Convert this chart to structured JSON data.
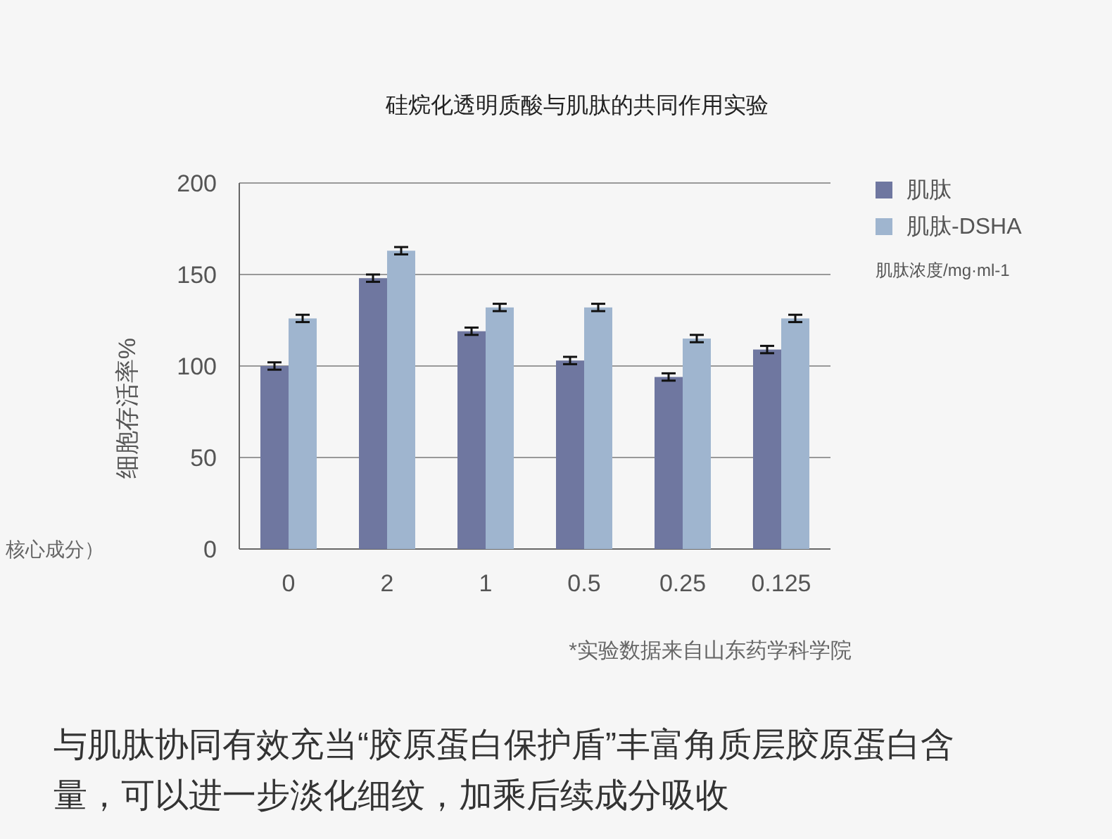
{
  "chart_data": {
    "type": "bar",
    "title": "硅烷化透明质酸与肌肽的共同作用实验",
    "xlabel": "肌肽浓度/mg·ml-1",
    "ylabel": "细胞存活率%",
    "categories": [
      "0",
      "2",
      "1",
      "0.5",
      "0.25",
      "0.125"
    ],
    "series": [
      {
        "name": "肌肽",
        "color": "#6f77a0",
        "values": [
          100,
          148,
          119,
          103,
          94,
          109
        ],
        "errors": [
          2,
          2,
          2,
          2,
          2,
          2
        ]
      },
      {
        "name": "肌肽-DSHA",
        "color": "#9fb5cf",
        "values": [
          126,
          163,
          132,
          132,
          115,
          126
        ],
        "errors": [
          2,
          2,
          2,
          2,
          2,
          2
        ]
      }
    ],
    "ylim": [
      0,
      200
    ],
    "yticks": [
      0,
      50,
      100,
      150,
      200
    ],
    "grid": "y",
    "legend": "top right",
    "annotations": [
      "*实验数据来自山东药学科学院",
      "与肌肽协同有效充当“胶原蛋白保护盾”丰富角质层胶原蛋白含量，可以进一步淡化细纹，加乘后续成分吸收",
      "核心成分）"
    ]
  }
}
